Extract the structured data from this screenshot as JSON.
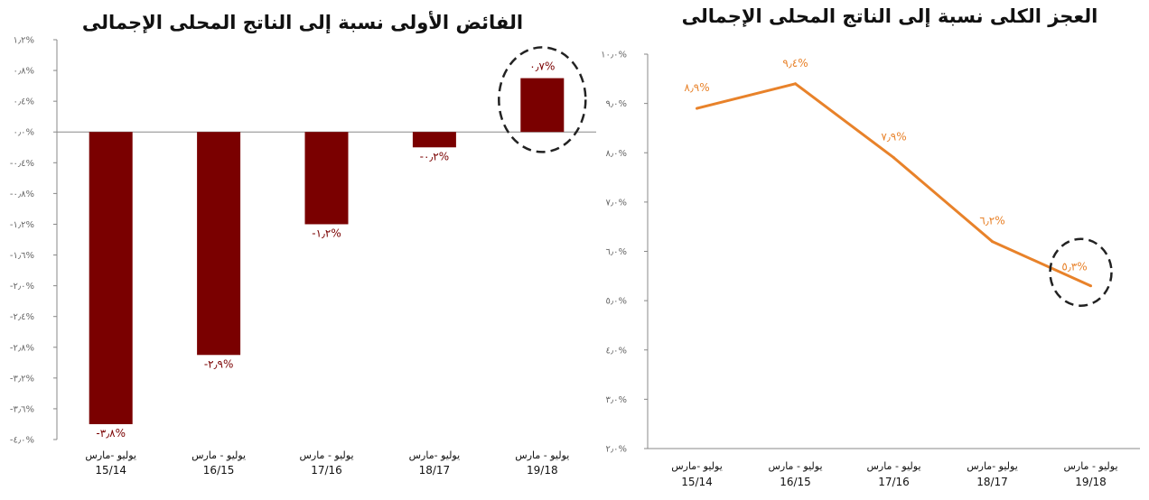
{
  "chart_data": [
    {
      "type": "bar",
      "title": "الفائض الأولى نسبة إلى الناتج المحلى الإجمالى",
      "categories": [
        {
          "line1": "يوليو -مارس",
          "line2": "15/14"
        },
        {
          "line1": "يوليو - مارس",
          "line2": "16/15"
        },
        {
          "line1": "يوليو - مارس",
          "line2": "17/16"
        },
        {
          "line1": "يوليو -مارس",
          "line2": "18/17"
        },
        {
          "line1": "يوليو - مارس",
          "line2": "19/18"
        }
      ],
      "values": [
        -3.8,
        -2.9,
        -1.2,
        -0.2,
        0.7
      ],
      "value_labels": [
        "-٣٫٨%",
        "-٢٫٩%",
        "-١٫٢%",
        "-٠٫٢%",
        "٠٫٧%"
      ],
      "ylim": [
        -4.0,
        1.2
      ],
      "yticks": [
        1.2,
        0.8,
        0.4,
        0.0,
        -0.4,
        -0.8,
        -1.2,
        -1.6,
        -2.0,
        -2.4,
        -2.8,
        -3.2,
        -3.6,
        -4.0
      ],
      "ytick_labels": [
        "١٫٢%",
        "٠٫٨%",
        "٠٫٤%",
        "٠٫٠%",
        "-٠٫٤%",
        "-٠٫٨%",
        "-١٫٢%",
        "-١٫٦%",
        "-٢٫٠%",
        "-٢٫٤%",
        "-٢٫٨%",
        "-٣٫٢%",
        "-٣٫٦%",
        "-٤٫٠%"
      ],
      "bar_color": "#7a0000",
      "label_color": "#7a0000",
      "highlight_index": 4,
      "grid": false
    },
    {
      "type": "line",
      "title": "العجز الكلى نسبة إلى الناتج المحلى الإجمالى",
      "categories": [
        {
          "line1": "يوليو -مارس",
          "line2": "15/14"
        },
        {
          "line1": "يوليو - مارس",
          "line2": "16/15"
        },
        {
          "line1": "يوليو - مارس",
          "line2": "17/16"
        },
        {
          "line1": "يوليو -مارس",
          "line2": "18/17"
        },
        {
          "line1": "يوليو - مارس",
          "line2": "19/18"
        }
      ],
      "values": [
        8.9,
        9.4,
        7.9,
        6.2,
        5.3
      ],
      "value_labels": [
        "٨٫٩%",
        "٩٫٤%",
        "٧٫٩%",
        "٦٫٢%",
        "٥٫٣%"
      ],
      "ylim": [
        2.0,
        10.0
      ],
      "yticks": [
        10.0,
        9.0,
        8.0,
        7.0,
        6.0,
        5.0,
        4.0,
        3.0,
        2.0
      ],
      "ytick_labels": [
        "١٠٫٠%",
        "٩٫٠%",
        "٨٫٠%",
        "٧٫٠%",
        "٦٫٠%",
        "٥٫٠%",
        "٤٫٠%",
        "٣٫٠%",
        "٢٫٠%"
      ],
      "line_color": "#e8822a",
      "label_color": "#e8822a",
      "highlight_index": 4,
      "grid": false
    }
  ]
}
